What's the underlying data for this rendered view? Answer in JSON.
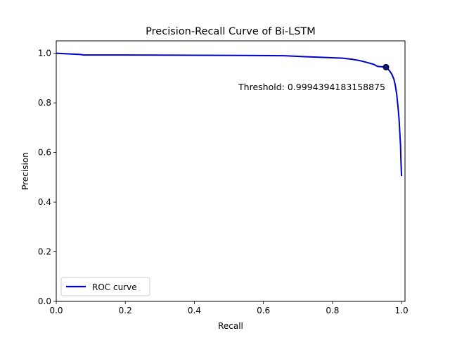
{
  "chart_data": {
    "type": "line",
    "title": "Precision-Recall Curve of Bi-LSTM",
    "xlabel": "Recall",
    "ylabel": "Precision",
    "xlim": [
      0.0,
      1.01
    ],
    "ylim": [
      0.0,
      1.05
    ],
    "xticks": [
      "0.0",
      "0.2",
      "0.4",
      "0.6",
      "0.8",
      "1.0"
    ],
    "yticks": [
      "0.0",
      "0.2",
      "0.4",
      "0.6",
      "0.8",
      "1.0"
    ],
    "grid": false,
    "legend": {
      "position": "lower-left",
      "entries": [
        "ROC curve"
      ]
    },
    "series": [
      {
        "name": "ROC curve",
        "color": "#0000cd",
        "x": [
          0.0,
          0.03,
          0.07,
          0.08,
          0.2,
          0.4,
          0.55,
          0.66,
          0.72,
          0.78,
          0.83,
          0.86,
          0.88,
          0.9,
          0.92,
          0.93,
          0.955,
          0.965,
          0.972,
          0.978,
          0.982,
          0.986,
          0.99,
          0.993,
          0.995,
          0.997,
          0.998,
          0.999,
          1.0
        ],
        "y": [
          1.0,
          0.998,
          0.995,
          0.993,
          0.993,
          0.992,
          0.991,
          0.99,
          0.986,
          0.983,
          0.98,
          0.975,
          0.97,
          0.963,
          0.955,
          0.947,
          0.944,
          0.93,
          0.915,
          0.895,
          0.87,
          0.835,
          0.78,
          0.73,
          0.68,
          0.63,
          0.58,
          0.54,
          0.505
        ]
      }
    ],
    "annotation": {
      "text": "Threshold: 0.9994394183158875",
      "point": {
        "x": 0.955,
        "y": 0.944
      }
    }
  }
}
